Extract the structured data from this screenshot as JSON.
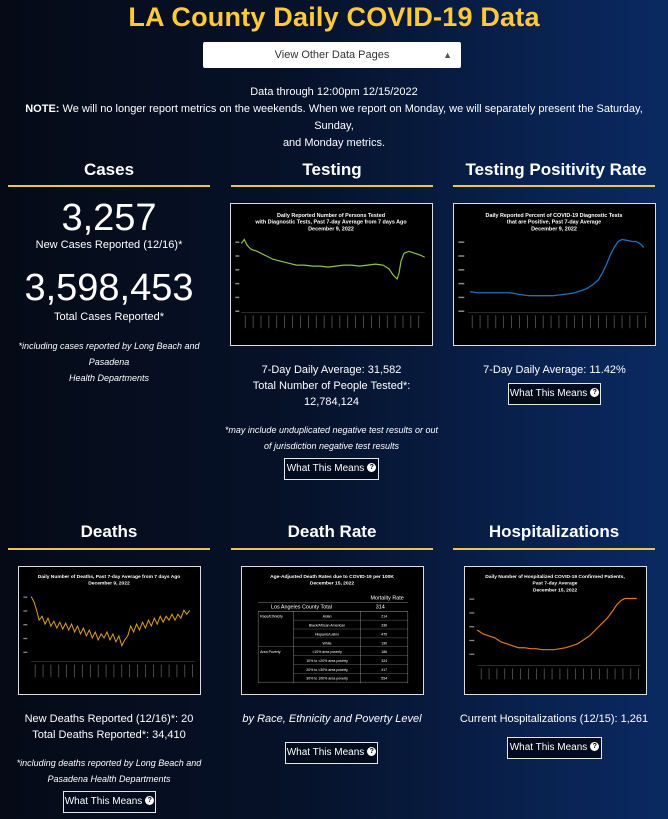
{
  "page": {
    "title": "LA County Daily COVID-19 Data",
    "select_label": "View Other Data Pages",
    "data_through": "Data through 12:00pm 12/15/2022",
    "note_label": "NOTE:",
    "note_line1": "We will no longer report metrics on the weekends. When we report on Monday, we will separately present the Saturday, Sunday,",
    "note_line2": "and Monday metrics.",
    "what_this_means": "What This Means"
  },
  "cases": {
    "heading": "Cases",
    "new_cases_value": "3,257",
    "new_cases_label": "New Cases Reported (12/16)*",
    "total_cases_value": "3,598,453",
    "total_cases_label": "Total Cases Reported*",
    "footnote_line1": "*including cases reported by Long Beach and Pasadena",
    "footnote_line2": "Health Departments"
  },
  "testing": {
    "heading": "Testing",
    "chart_title1": "Daily Reported Number of Persons Tested",
    "chart_title2": "with Diagnostic Tests, Past 7-day Average from 7 days Ago",
    "chart_title3": "December 9, 2022",
    "avg_label": "7-Day Daily Average: 31,582",
    "total_label": "Total Number of People Tested*:",
    "total_value": "12,784,124",
    "footnote_line1": "*may include unduplicated negative test results or out",
    "footnote_line2": "of jurisdiction negative test results",
    "line_color": "#8dc63f"
  },
  "positivity": {
    "heading": "Testing Positivity Rate",
    "chart_title1": "Daily Reported Percent of COVID-19 Diagnostic Tests",
    "chart_title2": "that are Positive, Past 7-day Average",
    "chart_title3": "December 9, 2022",
    "avg_label": "7-Day Daily Average: 11.42%",
    "line_color": "#1e73be"
  },
  "deaths": {
    "heading": "Deaths",
    "chart_title1": "Daily Number of Deaths, Past 7-day Average from 7 days Ago",
    "chart_title2": "December 9, 2022",
    "new_label": "New Deaths Reported (12/16)*: 20",
    "total_label": "Total Deaths Reported*: 34,410",
    "footnote_line1": "*including deaths reported by Long Beach and",
    "footnote_line2": "Pasadena Health Departments",
    "line_color": "#e0a317"
  },
  "death_rate": {
    "heading": "Death Rate",
    "chart_title1": "Age-Adjusted Death Rates due to COVID-19 per 100K",
    "chart_title2": "December 15, 2022",
    "col_header": "Mortality Rate",
    "county_label": "Los Angeles County Total",
    "county_value": "314",
    "rows": [
      {
        "group": "Race/Ethnicity",
        "label": "Asian",
        "value": "214"
      },
      {
        "group": "",
        "label": "Black/African American",
        "value": "336"
      },
      {
        "group": "",
        "label": "Hispanic/Latino",
        "value": "475"
      },
      {
        "group": "",
        "label": "White",
        "value": "190"
      },
      {
        "group": "Area Poverty",
        "label": "<10% area poverty",
        "value": "186"
      },
      {
        "group": "",
        "label": "10% to <20% area poverty",
        "value": "324"
      },
      {
        "group": "",
        "label": "20% to <30% area poverty",
        "value": "417"
      },
      {
        "group": "",
        "label": "30% to 100% area poverty",
        "value": "554"
      }
    ],
    "caption": "by Race, Ethnicity and Poverty Level"
  },
  "hospitalizations": {
    "heading": "Hospitalizations",
    "chart_title1": "Daily Number of Hospitalized COVID-19 Confirmed Patients,",
    "chart_title2": "Past 7-day Average",
    "chart_title3": "December 15, 2022",
    "current_label": "Current Hospitalizations (12/15): 1,261",
    "line_color": "#e07b18"
  }
}
